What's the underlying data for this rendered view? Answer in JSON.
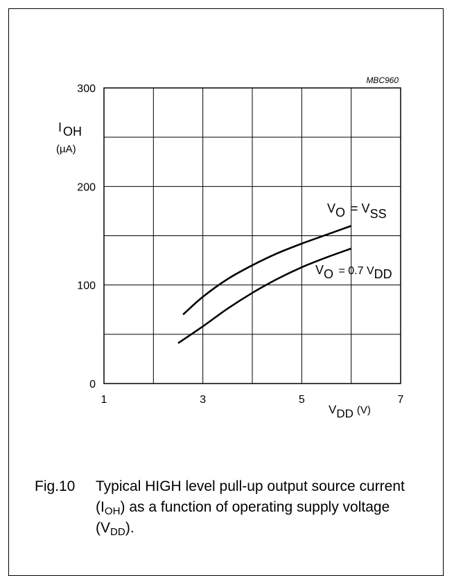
{
  "figure": {
    "code": "MBC960",
    "caption_number": "Fig.10",
    "caption_pre": "Typical HIGH level pull-up output source current (I",
    "caption_sub1": "OH",
    "caption_mid": ") as a function of operating supply voltage (V",
    "caption_sub2": "DD",
    "caption_post": ")."
  },
  "chart_data": {
    "type": "line",
    "title": "",
    "ylabel": {
      "main": "I",
      "sub": "OH",
      "unit": "(µA)"
    },
    "xlabel": {
      "main": "V",
      "sub": "DD",
      "unit": "(V)"
    },
    "xlim": [
      1,
      7
    ],
    "ylim": [
      0,
      300
    ],
    "x_ticks": [
      1,
      3,
      5,
      7
    ],
    "y_ticks": [
      0,
      100,
      200,
      300
    ],
    "grid": true,
    "series": [
      {
        "label_parts": [
          "V",
          "O",
          " = V",
          "SS"
        ],
        "x": [
          2.6,
          3.0,
          3.5,
          4.0,
          4.5,
          5.0,
          5.5,
          6.0
        ],
        "y": [
          70,
          88,
          106,
          120,
          132,
          142,
          151,
          160
        ]
      },
      {
        "label_parts": [
          "V",
          "O",
          " = 0.7 V",
          "DD"
        ],
        "x": [
          2.5,
          3.0,
          3.5,
          4.0,
          4.5,
          5.0,
          5.5,
          6.0
        ],
        "y": [
          41,
          58,
          76,
          92,
          106,
          118,
          128,
          137
        ]
      }
    ]
  }
}
